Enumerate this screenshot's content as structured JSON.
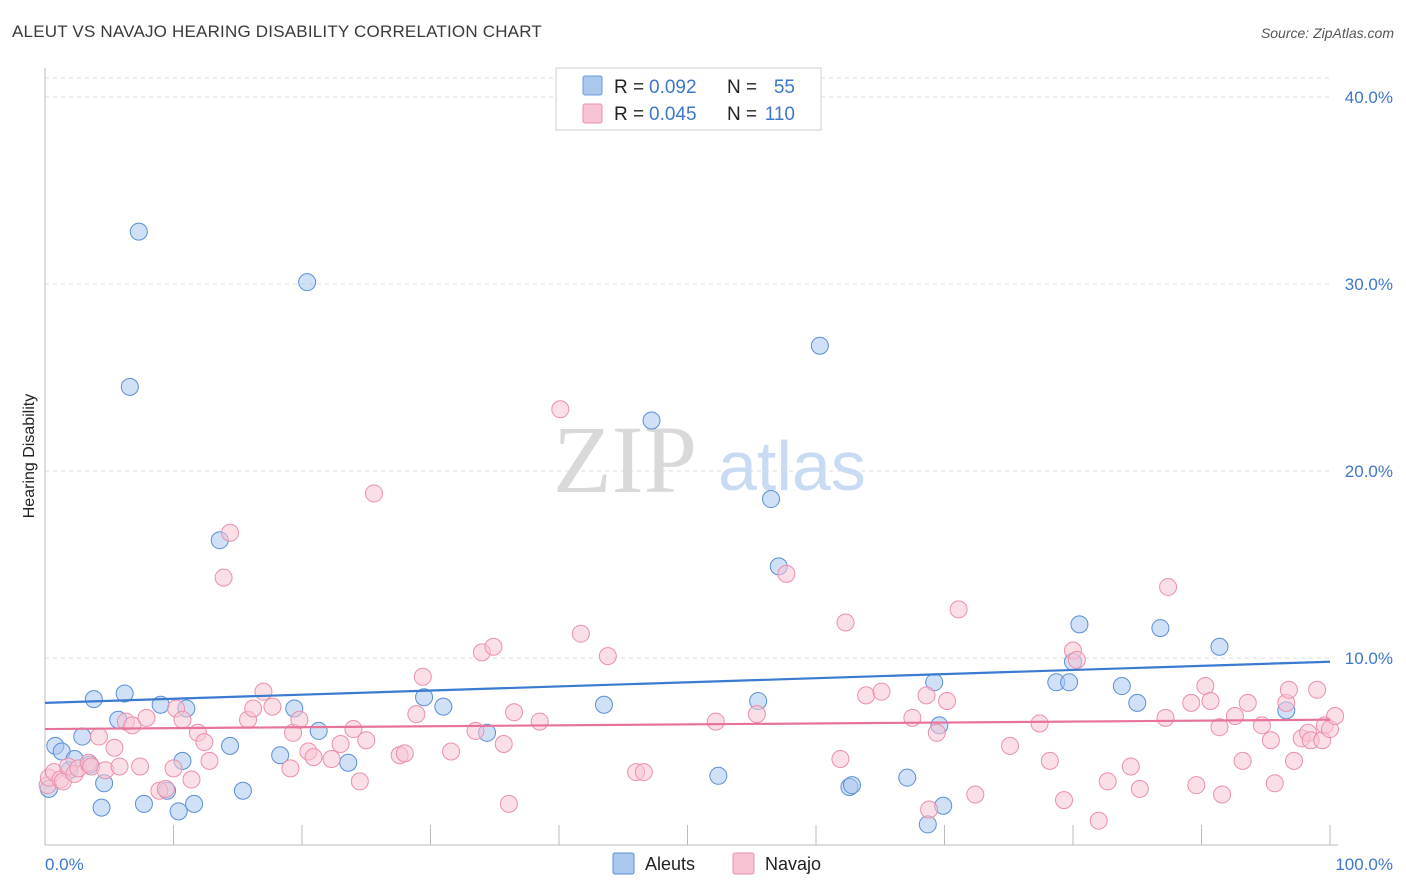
{
  "title": "ALEUT VS NAVAJO HEARING DISABILITY CORRELATION CHART",
  "source": "Source: ZipAtlas.com",
  "watermark": {
    "zip": "ZIP",
    "atlas": "atlas"
  },
  "stats_legend": [
    {
      "r_label": "R =",
      "r_value": "0.092",
      "n_label": "N =",
      "n_value": "55",
      "color": "#aac7ee",
      "stroke": "#6d9ad8"
    },
    {
      "r_label": "R =",
      "r_value": "0.045",
      "n_label": "N =",
      "n_value": "110",
      "color": "#f8c4d4",
      "stroke": "#ec8fac"
    }
  ],
  "chart_data": {
    "type": "scatter",
    "title": "ALEUT VS NAVAJO HEARING DISABILITY CORRELATION CHART",
    "xlabel": "",
    "ylabel": "Hearing Disability",
    "xlim": [
      0,
      100
    ],
    "ylim": [
      0,
      41.5
    ],
    "x_tick_labels": [
      "0.0%",
      "100.0%"
    ],
    "y_ticks": [
      10,
      20,
      30,
      40
    ],
    "y_tick_labels": [
      "10.0%",
      "20.0%",
      "30.0%",
      "40.0%"
    ],
    "grid": true,
    "legend_position": "bottom-center",
    "series": [
      {
        "name": "Aleuts",
        "color": "#aac7ee",
        "stroke": "#5b8fd4",
        "trend": {
          "x": [
            0,
            100
          ],
          "y": [
            7.6,
            9.8
          ],
          "color": "#3a7ad0"
        },
        "points": [
          [
            0.3,
            3.0
          ],
          [
            0.8,
            5.3
          ],
          [
            1.3,
            5.0
          ],
          [
            1.9,
            4.0
          ],
          [
            2.3,
            4.6
          ],
          [
            2.9,
            5.8
          ],
          [
            3.5,
            4.3
          ],
          [
            3.8,
            7.8
          ],
          [
            4.4,
            2.0
          ],
          [
            4.6,
            3.3
          ],
          [
            5.7,
            6.7
          ],
          [
            6.2,
            8.1
          ],
          [
            6.6,
            24.5
          ],
          [
            7.3,
            32.8
          ],
          [
            7.7,
            2.2
          ],
          [
            9.0,
            7.5
          ],
          [
            9.5,
            2.9
          ],
          [
            10.4,
            1.8
          ],
          [
            10.7,
            4.5
          ],
          [
            11.0,
            7.3
          ],
          [
            11.6,
            2.2
          ],
          [
            13.6,
            16.3
          ],
          [
            14.4,
            5.3
          ],
          [
            15.4,
            2.9
          ],
          [
            18.3,
            4.8
          ],
          [
            19.4,
            7.3
          ],
          [
            20.4,
            30.1
          ],
          [
            21.3,
            6.1
          ],
          [
            23.6,
            4.4
          ],
          [
            29.5,
            7.9
          ],
          [
            31.0,
            7.4
          ],
          [
            34.4,
            6.0
          ],
          [
            43.5,
            7.5
          ],
          [
            47.2,
            22.7
          ],
          [
            52.4,
            3.7
          ],
          [
            55.5,
            7.7
          ],
          [
            56.5,
            18.5
          ],
          [
            57.1,
            14.9
          ],
          [
            60.3,
            26.7
          ],
          [
            62.6,
            3.1
          ],
          [
            62.8,
            3.2
          ],
          [
            67.1,
            3.6
          ],
          [
            68.7,
            1.1
          ],
          [
            69.2,
            8.7
          ],
          [
            69.6,
            6.4
          ],
          [
            69.9,
            2.1
          ],
          [
            78.7,
            8.7
          ],
          [
            79.7,
            8.7
          ],
          [
            80.0,
            9.8
          ],
          [
            80.5,
            11.8
          ],
          [
            83.8,
            8.5
          ],
          [
            85.0,
            7.6
          ],
          [
            86.8,
            11.6
          ],
          [
            91.4,
            10.6
          ],
          [
            96.6,
            7.2
          ]
        ]
      },
      {
        "name": "Navajo",
        "color": "#f8c4d4",
        "stroke": "#ec8fac",
        "trend": {
          "x": [
            0,
            100
          ],
          "y": [
            6.2,
            6.7
          ],
          "color": "#e8739a"
        },
        "points": [
          [
            0.2,
            3.2
          ],
          [
            0.3,
            3.6
          ],
          [
            0.7,
            3.9
          ],
          [
            1.2,
            3.5
          ],
          [
            1.4,
            3.4
          ],
          [
            1.8,
            4.2
          ],
          [
            2.3,
            3.8
          ],
          [
            2.6,
            4.1
          ],
          [
            3.4,
            4.4
          ],
          [
            3.6,
            4.2
          ],
          [
            4.2,
            5.8
          ],
          [
            4.7,
            4.0
          ],
          [
            5.4,
            5.2
          ],
          [
            5.8,
            4.2
          ],
          [
            6.3,
            6.6
          ],
          [
            6.8,
            6.4
          ],
          [
            7.4,
            4.2
          ],
          [
            7.9,
            6.8
          ],
          [
            8.9,
            2.9
          ],
          [
            9.4,
            3.0
          ],
          [
            10.0,
            4.1
          ],
          [
            10.2,
            7.3
          ],
          [
            10.7,
            6.7
          ],
          [
            11.4,
            3.5
          ],
          [
            11.9,
            6.0
          ],
          [
            12.4,
            5.5
          ],
          [
            12.8,
            4.5
          ],
          [
            13.9,
            14.3
          ],
          [
            14.4,
            16.7
          ],
          [
            15.8,
            6.7
          ],
          [
            16.2,
            7.3
          ],
          [
            17.0,
            8.2
          ],
          [
            17.7,
            7.4
          ],
          [
            19.1,
            4.1
          ],
          [
            19.3,
            6.0
          ],
          [
            19.8,
            6.7
          ],
          [
            20.5,
            5.0
          ],
          [
            20.9,
            4.7
          ],
          [
            22.3,
            4.6
          ],
          [
            23.0,
            5.4
          ],
          [
            24.0,
            6.2
          ],
          [
            24.5,
            3.4
          ],
          [
            25.0,
            5.6
          ],
          [
            25.6,
            18.8
          ],
          [
            27.6,
            4.8
          ],
          [
            28.0,
            4.9
          ],
          [
            28.9,
            7.0
          ],
          [
            29.4,
            9.0
          ],
          [
            31.6,
            5.0
          ],
          [
            33.5,
            6.1
          ],
          [
            34.0,
            10.3
          ],
          [
            34.9,
            10.6
          ],
          [
            35.7,
            5.4
          ],
          [
            36.1,
            2.2
          ],
          [
            36.5,
            7.1
          ],
          [
            38.5,
            6.6
          ],
          [
            40.1,
            23.3
          ],
          [
            41.7,
            11.3
          ],
          [
            43.8,
            10.1
          ],
          [
            46.0,
            3.9
          ],
          [
            46.6,
            3.9
          ],
          [
            52.2,
            6.6
          ],
          [
            55.4,
            7.0
          ],
          [
            57.7,
            14.5
          ],
          [
            61.9,
            4.6
          ],
          [
            62.3,
            11.9
          ],
          [
            63.9,
            8.0
          ],
          [
            65.1,
            8.2
          ],
          [
            67.5,
            6.8
          ],
          [
            68.6,
            8.0
          ],
          [
            68.8,
            1.9
          ],
          [
            69.4,
            6.0
          ],
          [
            70.2,
            7.7
          ],
          [
            71.1,
            12.6
          ],
          [
            72.4,
            2.7
          ],
          [
            75.1,
            5.3
          ],
          [
            77.4,
            6.5
          ],
          [
            78.2,
            4.5
          ],
          [
            79.3,
            2.4
          ],
          [
            80.0,
            10.4
          ],
          [
            80.3,
            9.9
          ],
          [
            82.0,
            1.3
          ],
          [
            82.7,
            3.4
          ],
          [
            84.5,
            4.2
          ],
          [
            85.2,
            3.0
          ],
          [
            87.2,
            6.8
          ],
          [
            87.4,
            13.8
          ],
          [
            89.2,
            7.6
          ],
          [
            89.6,
            3.2
          ],
          [
            90.3,
            8.5
          ],
          [
            90.7,
            7.7
          ],
          [
            91.4,
            6.3
          ],
          [
            91.6,
            2.7
          ],
          [
            92.6,
            6.9
          ],
          [
            93.2,
            4.5
          ],
          [
            93.6,
            7.6
          ],
          [
            94.7,
            6.4
          ],
          [
            95.4,
            5.6
          ],
          [
            95.7,
            3.3
          ],
          [
            96.6,
            7.6
          ],
          [
            96.8,
            8.3
          ],
          [
            97.2,
            4.5
          ],
          [
            97.8,
            5.7
          ],
          [
            98.3,
            6.0
          ],
          [
            98.5,
            5.6
          ],
          [
            99.0,
            8.3
          ],
          [
            99.4,
            5.6
          ],
          [
            99.6,
            6.4
          ],
          [
            100.0,
            6.2
          ],
          [
            100.4,
            6.9
          ]
        ]
      }
    ]
  }
}
